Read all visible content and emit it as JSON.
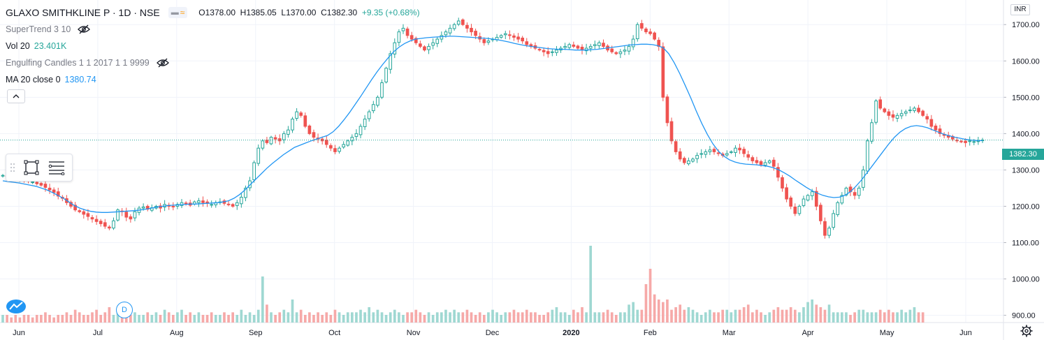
{
  "header": {
    "symbol": "GLAXO SMITHKLINE P · 1D · NSE",
    "open": "O1378.00",
    "high": "H1385.05",
    "low": "L1370.00",
    "close": "C1382.30",
    "change": "+9.35 (+0.68%)"
  },
  "indicators": {
    "supertrend": "SuperTrend 3 10",
    "vol_name": "Vol 20",
    "vol_value": "23.401K",
    "engulfing": "Engulfing Candles 1 1 2017 1 1 9999",
    "ma_name": "MA 20 close 0",
    "ma_value": "1380.74"
  },
  "axis": {
    "currency": "INR",
    "last_price": "1382.30",
    "price_ticks": [
      {
        "label": "1700.00",
        "value": 1700
      },
      {
        "label": "1600.00",
        "value": 1600
      },
      {
        "label": "1500.00",
        "value": 1500
      },
      {
        "label": "1400.00",
        "value": 1400
      },
      {
        "label": "1300.00",
        "value": 1300
      },
      {
        "label": "1200.00",
        "value": 1200
      },
      {
        "label": "1100.00",
        "value": 1100
      },
      {
        "label": "1000.00",
        "value": 1000
      },
      {
        "label": "900.00",
        "value": 900
      }
    ],
    "time_ticks": [
      "Jun",
      "Jul",
      "Aug",
      "Sep",
      "Oct",
      "Nov",
      "Dec",
      "2020",
      "Feb",
      "Mar",
      "Apr",
      "May",
      "Jun"
    ]
  },
  "markers": {
    "dividend": "D"
  },
  "colors": {
    "up": "#26a69a",
    "down": "#ef5350",
    "ma": "#2196f3",
    "vol_up": "#9fd8d2",
    "vol_down": "#f6a9a8"
  },
  "icons": [
    "eye-off-icon",
    "rectangle-tool-icon",
    "lines-tool-icon",
    "chevron-up-icon",
    "tradingview-logo-icon",
    "gear-icon"
  ],
  "chart_data": {
    "type": "candlestick",
    "ylim": [
      880,
      1760
    ],
    "closes": [
      1285,
      1282,
      1280,
      1278,
      1276,
      1273,
      1270,
      1267,
      1262,
      1258,
      1252,
      1245,
      1238,
      1228,
      1222,
      1210,
      1200,
      1190,
      1185,
      1178,
      1172,
      1165,
      1158,
      1152,
      1145,
      1140,
      1160,
      1190,
      1185,
      1170,
      1165,
      1185,
      1195,
      1198,
      1192,
      1196,
      1200,
      1195,
      1205,
      1200,
      1198,
      1205,
      1210,
      1208,
      1203,
      1212,
      1215,
      1210,
      1208,
      1205,
      1210,
      1212,
      1208,
      1205,
      1200,
      1210,
      1225,
      1250,
      1270,
      1320,
      1360,
      1380,
      1375,
      1390,
      1385,
      1380,
      1400,
      1410,
      1440,
      1460,
      1450,
      1420,
      1400,
      1390,
      1385,
      1380,
      1370,
      1360,
      1350,
      1360,
      1370,
      1380,
      1390,
      1400,
      1420,
      1440,
      1460,
      1480,
      1500,
      1540,
      1580,
      1620,
      1650,
      1680,
      1690,
      1670,
      1660,
      1650,
      1640,
      1630,
      1640,
      1650,
      1660,
      1670,
      1680,
      1690,
      1700,
      1710,
      1700,
      1690,
      1680,
      1670,
      1660,
      1650,
      1655,
      1660,
      1665,
      1670,
      1675,
      1670,
      1665,
      1660,
      1655,
      1645,
      1640,
      1635,
      1630,
      1625,
      1620,
      1625,
      1630,
      1635,
      1640,
      1645,
      1640,
      1635,
      1630,
      1635,
      1640,
      1645,
      1650,
      1640,
      1630,
      1625,
      1620,
      1625,
      1630,
      1640,
      1660,
      1700,
      1690,
      1680,
      1675,
      1660,
      1640,
      1500,
      1430,
      1380,
      1350,
      1330,
      1320,
      1325,
      1330,
      1340,
      1345,
      1350,
      1355,
      1350,
      1345,
      1340,
      1345,
      1350,
      1360,
      1355,
      1345,
      1335,
      1325,
      1320,
      1315,
      1320,
      1325,
      1310,
      1280,
      1250,
      1220,
      1200,
      1180,
      1200,
      1220,
      1230,
      1240,
      1200,
      1160,
      1120,
      1140,
      1180,
      1210,
      1230,
      1250,
      1240,
      1230,
      1250,
      1300,
      1380,
      1430,
      1490,
      1470,
      1460,
      1450,
      1445,
      1450,
      1455,
      1460,
      1465,
      1470,
      1460,
      1450,
      1440,
      1420,
      1410,
      1400,
      1395,
      1390,
      1385,
      1380,
      1378,
      1375,
      1380,
      1378,
      1380,
      1382.3
    ],
    "ma20": [
      1270,
      1268,
      1266,
      1264,
      1261,
      1258,
      1255,
      1250,
      1245,
      1238,
      1230,
      1222,
      1212,
      1202,
      1195,
      1190,
      1186,
      1184,
      1183,
      1183,
      1184,
      1185,
      1186,
      1187,
      1188,
      1190,
      1192,
      1195,
      1198,
      1200,
      1202,
      1203,
      1204,
      1205,
      1206,
      1206,
      1207,
      1208,
      1209,
      1210,
      1212,
      1215,
      1222,
      1232,
      1245,
      1260,
      1275,
      1290,
      1305,
      1318,
      1330,
      1342,
      1352,
      1362,
      1368,
      1374,
      1380,
      1385,
      1390,
      1395,
      1405,
      1420,
      1438,
      1458,
      1480,
      1502,
      1525,
      1548,
      1570,
      1590,
      1608,
      1625,
      1638,
      1648,
      1655,
      1660,
      1662,
      1664,
      1665,
      1666,
      1667,
      1668,
      1668,
      1667,
      1666,
      1665,
      1664,
      1663,
      1662,
      1660,
      1658,
      1655,
      1652,
      1648,
      1645,
      1642,
      1640,
      1638,
      1636,
      1634,
      1633,
      1632,
      1632,
      1631,
      1630,
      1630,
      1630,
      1631,
      1632,
      1634,
      1636,
      1638,
      1640,
      1642,
      1644,
      1645,
      1646,
      1646,
      1645,
      1642,
      1636,
      1620,
      1595,
      1565,
      1532,
      1498,
      1462,
      1428,
      1398,
      1372,
      1352,
      1338,
      1328,
      1322,
      1318,
      1316,
      1315,
      1314,
      1312,
      1310,
      1306,
      1300,
      1292,
      1283,
      1272,
      1262,
      1252,
      1243,
      1236,
      1230,
      1226,
      1224,
      1225,
      1230,
      1240,
      1255,
      1272,
      1292,
      1312,
      1332,
      1352,
      1372,
      1390,
      1404,
      1414,
      1420,
      1422,
      1420,
      1416,
      1410,
      1404,
      1398,
      1394,
      1390,
      1387,
      1384,
      1382,
      1381,
      1380.74
    ],
    "volume": [
      3,
      3,
      2,
      3,
      2,
      3,
      3,
      2,
      3,
      3,
      4,
      3,
      2,
      3,
      3,
      4,
      3,
      5,
      4,
      3,
      3,
      4,
      5,
      3,
      4,
      6,
      3,
      4,
      3,
      5,
      3,
      4,
      3,
      3,
      4,
      3,
      4,
      3,
      5,
      4,
      3,
      4,
      5,
      3,
      4,
      3,
      4,
      3,
      3,
      4,
      3,
      3,
      4,
      3,
      4,
      3,
      5,
      3,
      4,
      3,
      5,
      18,
      7,
      4,
      3,
      4,
      5,
      4,
      9,
      4,
      5,
      3,
      4,
      3,
      4,
      3,
      4,
      3,
      5,
      4,
      3,
      4,
      4,
      4,
      5,
      4,
      6,
      4,
      5,
      4,
      3,
      4,
      5,
      4,
      3,
      4,
      4,
      5,
      4,
      3,
      4,
      3,
      4,
      4,
      5,
      4,
      5,
      4,
      4,
      5,
      4,
      3,
      4,
      3,
      4,
      5,
      4,
      3,
      4,
      4,
      5,
      4,
      4,
      5,
      4,
      4,
      3,
      3,
      4,
      5,
      6,
      4,
      4,
      3,
      5,
      4,
      6,
      4,
      30,
      4,
      4,
      4,
      5,
      4,
      3,
      4,
      4,
      7,
      8,
      5,
      5,
      15,
      21,
      11,
      9,
      8,
      9,
      5,
      6,
      7,
      5,
      6,
      5,
      4,
      3,
      4,
      5,
      4,
      4,
      5,
      5,
      4,
      5,
      5,
      6,
      7,
      4,
      5,
      4,
      3,
      4,
      5,
      6,
      5,
      5,
      6,
      5,
      4,
      6,
      8,
      9,
      7,
      6,
      5,
      7,
      4,
      4,
      4,
      4,
      3,
      4,
      5,
      5,
      4,
      4,
      4,
      5,
      4,
      5,
      4,
      4,
      5,
      4,
      5,
      6,
      4,
      4
    ]
  }
}
